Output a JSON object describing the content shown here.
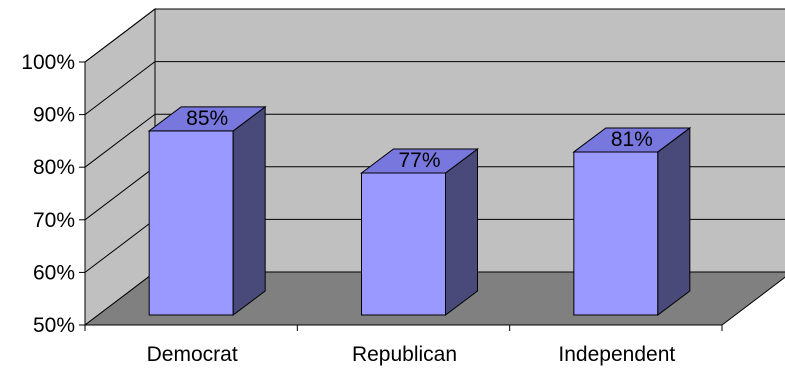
{
  "chart_data": {
    "type": "bar",
    "style": "3d-column",
    "categories": [
      "Democrat",
      "Republican",
      "Independent"
    ],
    "values": [
      85,
      77,
      81
    ],
    "data_labels": [
      "85%",
      "77%",
      "81%"
    ],
    "ylim": [
      50,
      100
    ],
    "yticks": [
      50,
      60,
      70,
      80,
      90,
      100
    ],
    "ytick_labels": [
      "50%",
      "60%",
      "70%",
      "80%",
      "90%",
      "100%"
    ],
    "grid": true,
    "legend": "none"
  },
  "colors": {
    "bar_front": "#9999ff",
    "bar_top": "#7777dd",
    "bar_side": "#4a4a7a",
    "back_wall": "#c0c0c0",
    "side_wall": "#c0c0c0",
    "floor": "#808080",
    "edge": "#000000"
  }
}
